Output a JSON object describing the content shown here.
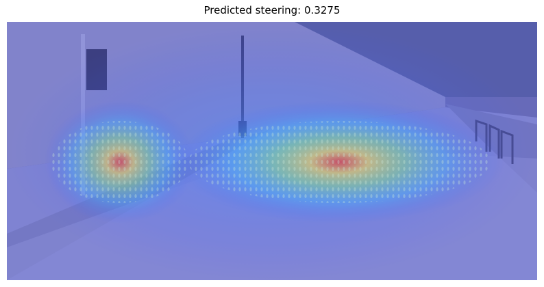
{
  "title": "Predicted steering: 0.3275"
}
